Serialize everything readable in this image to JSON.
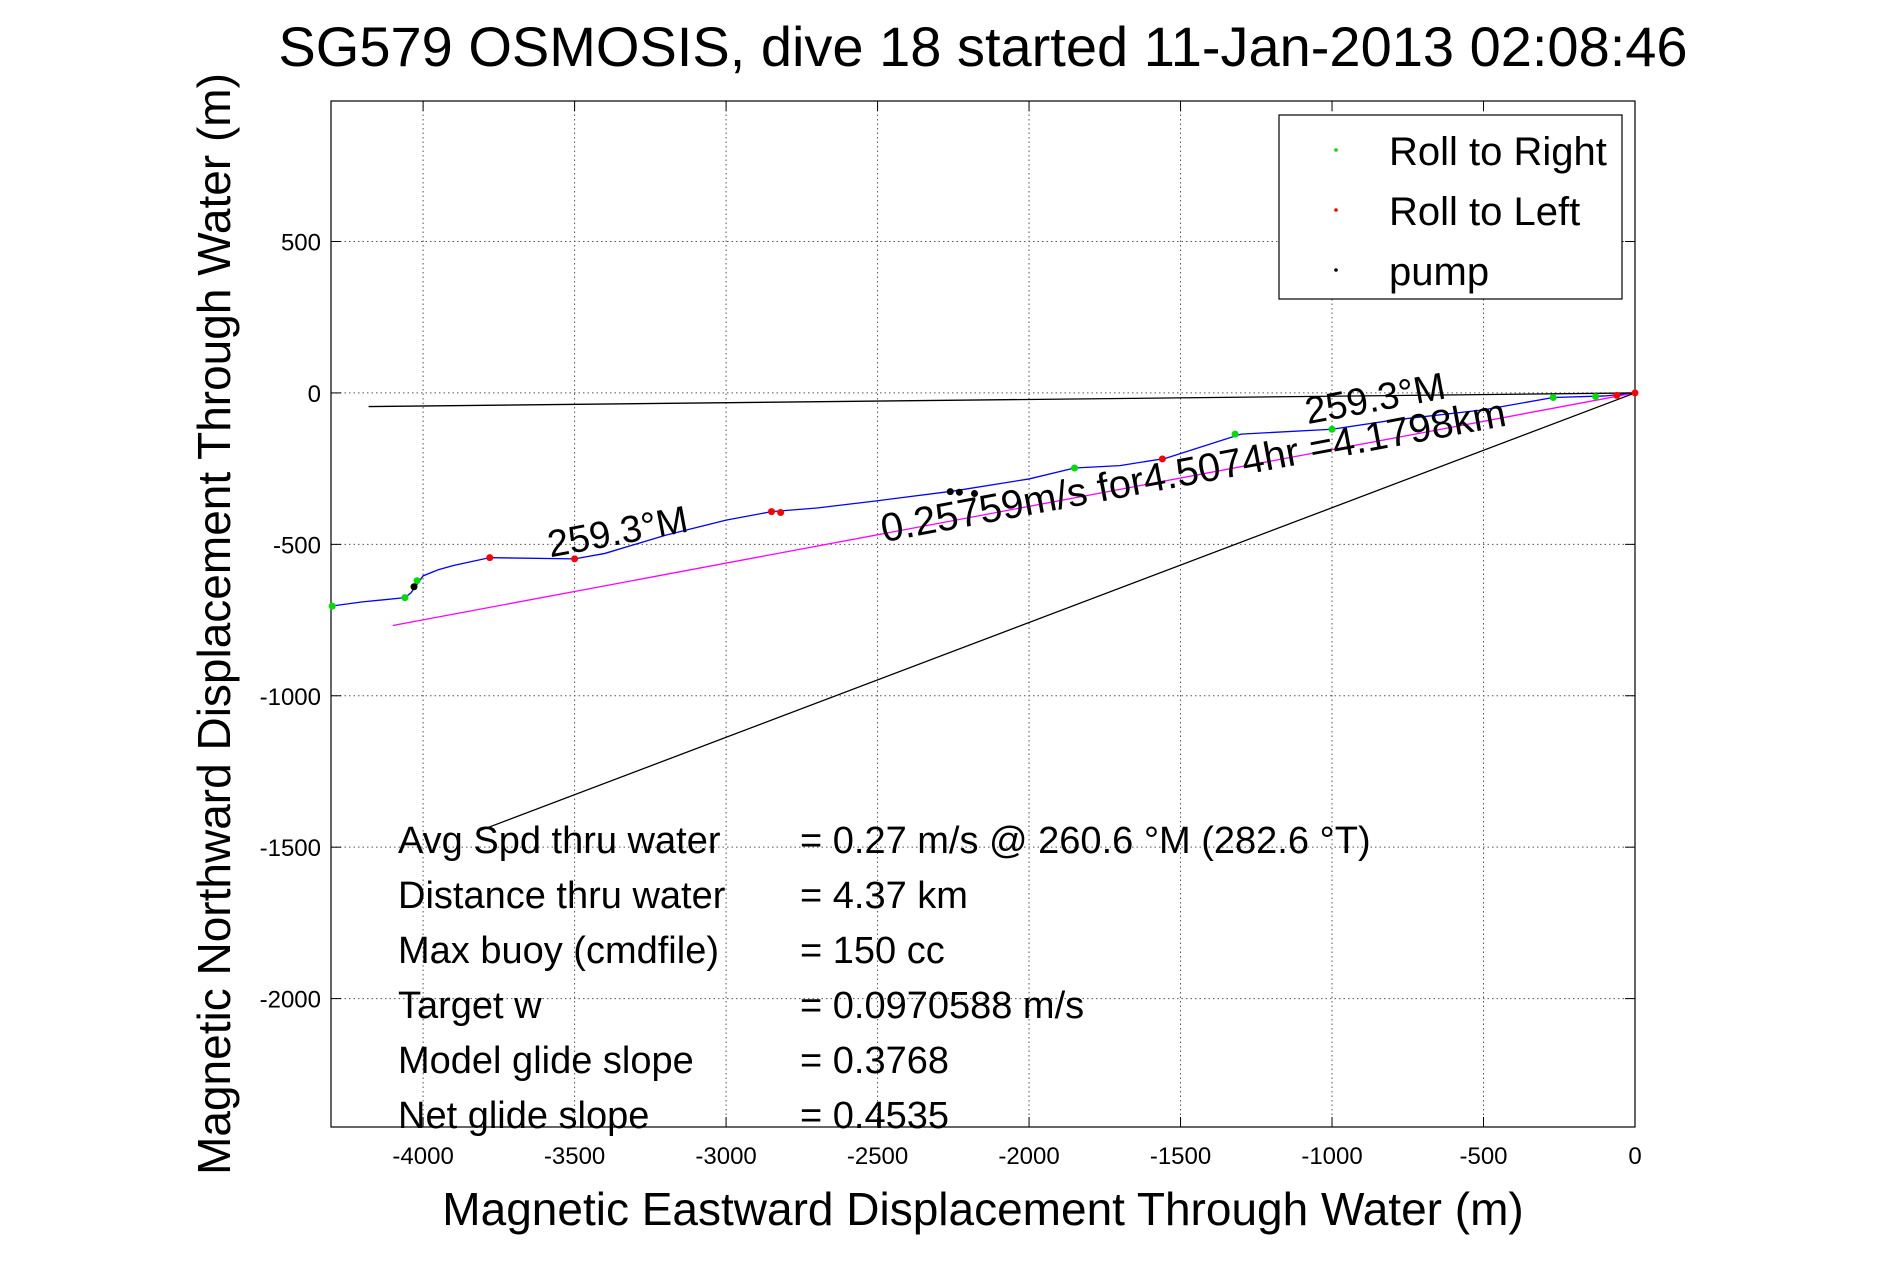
{
  "chart_data": {
    "type": "line",
    "title": "SG579 OSMOSIS, dive 18 started 11-Jan-2013 02:08:46",
    "xlabel": "Magnetic Eastward Displacement Through Water (m)",
    "ylabel": "Magnetic Northward Displacement Through Water (m)",
    "xlim": [
      -4304,
      0
    ],
    "ylim": [
      -2424,
      964
    ],
    "grid": true,
    "xticks": [
      -4000,
      -3500,
      -3000,
      -2500,
      -2000,
      -1500,
      -1000,
      -500,
      0
    ],
    "yticks": [
      500,
      0,
      -500,
      -1000,
      -1500,
      -2000
    ],
    "legend": {
      "placement": "top-right",
      "entries": [
        {
          "label": "Roll to Right",
          "color": "#00dd00"
        },
        {
          "label": "Roll to Left",
          "color": "#ff0000"
        },
        {
          "label": "pump",
          "color": "#000000"
        }
      ]
    },
    "series": [
      {
        "name": "track",
        "color": "#0000ff",
        "points": [
          [
            0,
            0
          ],
          [
            -100,
            -10
          ],
          [
            -270,
            -15
          ],
          [
            -500,
            -56
          ],
          [
            -800,
            -90
          ],
          [
            -1000,
            -120
          ],
          [
            -1300,
            -136
          ],
          [
            -1550,
            -216
          ],
          [
            -1700,
            -240
          ],
          [
            -1850,
            -248
          ],
          [
            -2000,
            -284
          ],
          [
            -2250,
            -324
          ],
          [
            -2500,
            -356
          ],
          [
            -2700,
            -380
          ],
          [
            -2850,
            -392
          ],
          [
            -3000,
            -420
          ],
          [
            -3200,
            -470
          ],
          [
            -3400,
            -530
          ],
          [
            -3500,
            -548
          ],
          [
            -3780,
            -544
          ],
          [
            -3900,
            -570
          ],
          [
            -3950,
            -584
          ],
          [
            -4000,
            -604
          ],
          [
            -4040,
            -660
          ],
          [
            -4060,
            -676
          ],
          [
            -4200,
            -690
          ],
          [
            -4304,
            -704
          ]
        ]
      },
      {
        "name": "heading line",
        "color": "#ff00ff",
        "points": [
          [
            0,
            0
          ],
          [
            -4100,
            -768
          ]
        ]
      },
      {
        "name": "surface line",
        "color": "#000000",
        "points": [
          [
            0,
            0
          ],
          [
            -4180,
            -45
          ]
        ]
      },
      {
        "name": "current line",
        "color": "#000000",
        "points": [
          [
            0,
            0
          ],
          [
            -3820,
            -1448
          ]
        ]
      }
    ],
    "markers": [
      {
        "type": "Roll to Right",
        "color": "#00dd00",
        "points": [
          [
            -270,
            -15
          ],
          [
            -130,
            -12
          ],
          [
            -1000,
            -120
          ],
          [
            -1320,
            -136
          ],
          [
            -1850,
            -248
          ],
          [
            -4020,
            -620
          ],
          [
            -4060,
            -676
          ],
          [
            -4300,
            -704
          ]
        ]
      },
      {
        "type": "Roll to Left",
        "color": "#ff0000",
        "points": [
          [
            0,
            0
          ],
          [
            -60,
            -8
          ],
          [
            -1560,
            -218
          ],
          [
            -2850,
            -392
          ],
          [
            -2820,
            -395
          ],
          [
            -3780,
            -544
          ],
          [
            -3500,
            -548
          ]
        ]
      },
      {
        "type": "pump",
        "color": "#000000",
        "points": [
          [
            -2260,
            -326
          ],
          [
            -2230,
            -328
          ],
          [
            -2180,
            -332
          ],
          [
            -4030,
            -640
          ]
        ]
      }
    ],
    "annotations": [
      {
        "text": "259.3°M",
        "at": [
          -850,
          -60
        ]
      },
      {
        "text": "0.25759m/s for4.5074hr =4.1798km",
        "at": [
          -1450,
          -300
        ]
      },
      {
        "text": "259.3°M",
        "at": [
          -3350,
          -500
        ]
      }
    ],
    "stats": [
      {
        "label": "Avg Spd thru water",
        "value": "=  0.27 m/s @ 260.6 °M (282.6 °T)"
      },
      {
        "label": "Distance thru water",
        "value": "=  4.37 km"
      },
      {
        "label": "Max buoy (cmdfile)",
        "value": "= 150 cc"
      },
      {
        "label": "Target w",
        "value": "= 0.0970588 m/s"
      },
      {
        "label": "Model glide slope",
        "value": "= 0.3768"
      },
      {
        "label": "Net glide slope",
        "value": "= 0.4535"
      }
    ]
  }
}
